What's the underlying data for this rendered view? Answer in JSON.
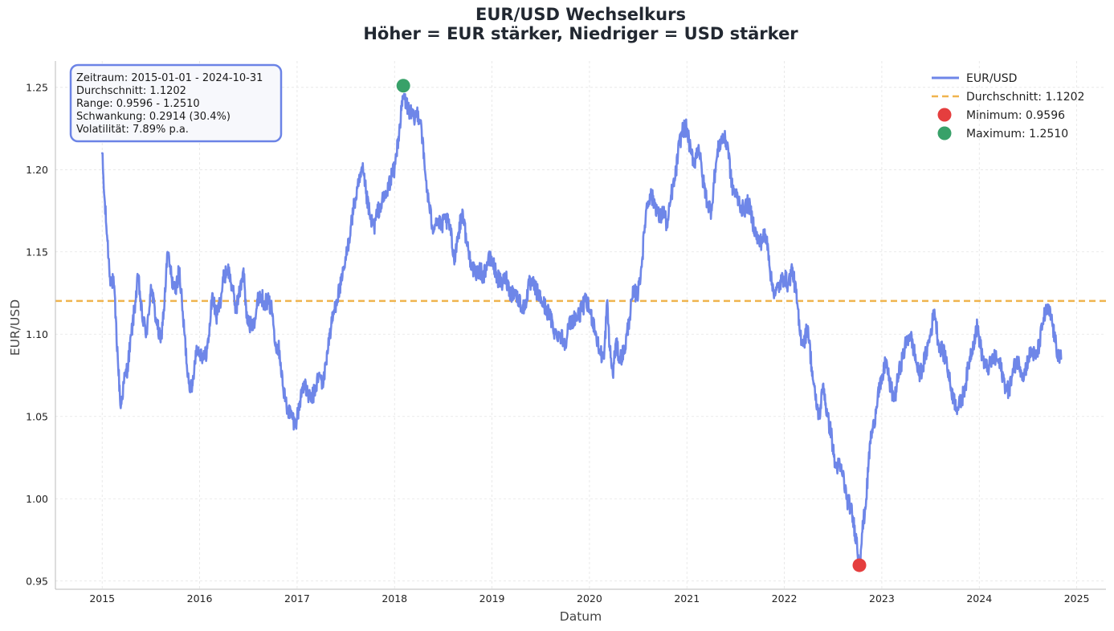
{
  "chart_data": {
    "type": "line",
    "title_line1": "EUR/USD Wechselkurs",
    "title_line2": "Höher = EUR stärker, Niedriger = USD stärker",
    "xlabel": "Datum",
    "ylabel": "EUR/USD",
    "xlim": [
      2014.52,
      2025.3
    ],
    "ylim": [
      0.945,
      1.266
    ],
    "x_ticks": [
      "2015",
      "2016",
      "2017",
      "2018",
      "2019",
      "2020",
      "2021",
      "2022",
      "2023",
      "2024",
      "2025"
    ],
    "y_ticks": [
      "0.95",
      "1.00",
      "1.05",
      "1.10",
      "1.15",
      "1.20",
      "1.25"
    ],
    "grid": true,
    "legend_position": "top-right",
    "series": [
      {
        "name": "EUR/USD",
        "color": "#6e86e8",
        "anchors": [
          [
            2015.0,
            1.21
          ],
          [
            2015.02,
            1.185
          ],
          [
            2015.05,
            1.16
          ],
          [
            2015.08,
            1.135
          ],
          [
            2015.12,
            1.13
          ],
          [
            2015.16,
            1.085
          ],
          [
            2015.19,
            1.055
          ],
          [
            2015.22,
            1.07
          ],
          [
            2015.26,
            1.08
          ],
          [
            2015.3,
            1.1
          ],
          [
            2015.34,
            1.12
          ],
          [
            2015.37,
            1.135
          ],
          [
            2015.41,
            1.11
          ],
          [
            2015.46,
            1.1
          ],
          [
            2015.5,
            1.13
          ],
          [
            2015.55,
            1.11
          ],
          [
            2015.6,
            1.095
          ],
          [
            2015.64,
            1.12
          ],
          [
            2015.67,
            1.15
          ],
          [
            2015.71,
            1.135
          ],
          [
            2015.75,
            1.125
          ],
          [
            2015.79,
            1.14
          ],
          [
            2015.83,
            1.11
          ],
          [
            2015.88,
            1.075
          ],
          [
            2015.92,
            1.065
          ],
          [
            2015.96,
            1.09
          ],
          [
            2016.0,
            1.09
          ],
          [
            2016.05,
            1.085
          ],
          [
            2016.09,
            1.095
          ],
          [
            2016.13,
            1.125
          ],
          [
            2016.17,
            1.11
          ],
          [
            2016.21,
            1.12
          ],
          [
            2016.25,
            1.135
          ],
          [
            2016.29,
            1.14
          ],
          [
            2016.33,
            1.13
          ],
          [
            2016.37,
            1.115
          ],
          [
            2016.41,
            1.125
          ],
          [
            2016.45,
            1.14
          ],
          [
            2016.48,
            1.11
          ],
          [
            2016.52,
            1.105
          ],
          [
            2016.57,
            1.11
          ],
          [
            2016.61,
            1.125
          ],
          [
            2016.66,
            1.12
          ],
          [
            2016.7,
            1.12
          ],
          [
            2016.74,
            1.115
          ],
          [
            2016.78,
            1.095
          ],
          [
            2016.82,
            1.09
          ],
          [
            2016.86,
            1.065
          ],
          [
            2016.9,
            1.055
          ],
          [
            2016.95,
            1.05
          ],
          [
            2016.98,
            1.045
          ],
          [
            2017.02,
            1.055
          ],
          [
            2017.06,
            1.07
          ],
          [
            2017.1,
            1.065
          ],
          [
            2017.14,
            1.06
          ],
          [
            2017.18,
            1.065
          ],
          [
            2017.22,
            1.075
          ],
          [
            2017.27,
            1.07
          ],
          [
            2017.31,
            1.09
          ],
          [
            2017.35,
            1.105
          ],
          [
            2017.4,
            1.12
          ],
          [
            2017.45,
            1.13
          ],
          [
            2017.5,
            1.145
          ],
          [
            2017.55,
            1.165
          ],
          [
            2017.59,
            1.18
          ],
          [
            2017.63,
            1.19
          ],
          [
            2017.67,
            1.2
          ],
          [
            2017.71,
            1.185
          ],
          [
            2017.75,
            1.17
          ],
          [
            2017.79,
            1.165
          ],
          [
            2017.83,
            1.175
          ],
          [
            2017.87,
            1.18
          ],
          [
            2017.92,
            1.185
          ],
          [
            2017.96,
            1.195
          ],
          [
            2018.0,
            1.2
          ],
          [
            2018.04,
            1.22
          ],
          [
            2018.09,
            1.245
          ],
          [
            2018.12,
            1.24
          ],
          [
            2018.16,
            1.235
          ],
          [
            2018.2,
            1.23
          ],
          [
            2018.23,
            1.235
          ],
          [
            2018.27,
            1.23
          ],
          [
            2018.31,
            1.2
          ],
          [
            2018.35,
            1.18
          ],
          [
            2018.39,
            1.165
          ],
          [
            2018.43,
            1.17
          ],
          [
            2018.48,
            1.165
          ],
          [
            2018.52,
            1.17
          ],
          [
            2018.57,
            1.165
          ],
          [
            2018.61,
            1.145
          ],
          [
            2018.65,
            1.16
          ],
          [
            2018.7,
            1.175
          ],
          [
            2018.74,
            1.155
          ],
          [
            2018.78,
            1.145
          ],
          [
            2018.83,
            1.135
          ],
          [
            2018.87,
            1.14
          ],
          [
            2018.91,
            1.135
          ],
          [
            2018.96,
            1.145
          ],
          [
            2019.0,
            1.145
          ],
          [
            2019.05,
            1.135
          ],
          [
            2019.1,
            1.13
          ],
          [
            2019.14,
            1.135
          ],
          [
            2019.19,
            1.125
          ],
          [
            2019.24,
            1.125
          ],
          [
            2019.28,
            1.12
          ],
          [
            2019.33,
            1.115
          ],
          [
            2019.38,
            1.13
          ],
          [
            2019.42,
            1.13
          ],
          [
            2019.47,
            1.125
          ],
          [
            2019.51,
            1.12
          ],
          [
            2019.56,
            1.115
          ],
          [
            2019.6,
            1.11
          ],
          [
            2019.65,
            1.1
          ],
          [
            2019.7,
            1.1
          ],
          [
            2019.75,
            1.095
          ],
          [
            2019.79,
            1.105
          ],
          [
            2019.84,
            1.11
          ],
          [
            2019.88,
            1.11
          ],
          [
            2019.92,
            1.115
          ],
          [
            2019.96,
            1.12
          ],
          [
            2020.0,
            1.115
          ],
          [
            2020.05,
            1.105
          ],
          [
            2020.1,
            1.09
          ],
          [
            2020.15,
            1.085
          ],
          [
            2020.18,
            1.12
          ],
          [
            2020.21,
            1.09
          ],
          [
            2020.24,
            1.075
          ],
          [
            2020.27,
            1.095
          ],
          [
            2020.31,
            1.085
          ],
          [
            2020.36,
            1.09
          ],
          [
            2020.41,
            1.11
          ],
          [
            2020.45,
            1.125
          ],
          [
            2020.5,
            1.125
          ],
          [
            2020.54,
            1.145
          ],
          [
            2020.58,
            1.175
          ],
          [
            2020.62,
            1.185
          ],
          [
            2020.67,
            1.18
          ],
          [
            2020.72,
            1.17
          ],
          [
            2020.76,
            1.175
          ],
          [
            2020.8,
            1.165
          ],
          [
            2020.84,
            1.185
          ],
          [
            2020.88,
            1.195
          ],
          [
            2020.92,
            1.215
          ],
          [
            2020.96,
            1.225
          ],
          [
            2021.0,
            1.225
          ],
          [
            2021.04,
            1.21
          ],
          [
            2021.08,
            1.205
          ],
          [
            2021.12,
            1.215
          ],
          [
            2021.16,
            1.195
          ],
          [
            2021.21,
            1.18
          ],
          [
            2021.25,
            1.175
          ],
          [
            2021.29,
            1.2
          ],
          [
            2021.33,
            1.215
          ],
          [
            2021.37,
            1.22
          ],
          [
            2021.42,
            1.215
          ],
          [
            2021.46,
            1.19
          ],
          [
            2021.5,
            1.185
          ],
          [
            2021.54,
            1.18
          ],
          [
            2021.58,
            1.175
          ],
          [
            2021.63,
            1.18
          ],
          [
            2021.67,
            1.17
          ],
          [
            2021.71,
            1.16
          ],
          [
            2021.75,
            1.155
          ],
          [
            2021.79,
            1.16
          ],
          [
            2021.83,
            1.155
          ],
          [
            2021.87,
            1.13
          ],
          [
            2021.91,
            1.125
          ],
          [
            2021.95,
            1.13
          ],
          [
            2022.0,
            1.135
          ],
          [
            2022.04,
            1.13
          ],
          [
            2022.08,
            1.14
          ],
          [
            2022.12,
            1.125
          ],
          [
            2022.16,
            1.1
          ],
          [
            2022.2,
            1.095
          ],
          [
            2022.24,
            1.105
          ],
          [
            2022.28,
            1.08
          ],
          [
            2022.32,
            1.06
          ],
          [
            2022.36,
            1.05
          ],
          [
            2022.4,
            1.07
          ],
          [
            2022.44,
            1.05
          ],
          [
            2022.48,
            1.04
          ],
          [
            2022.52,
            1.02
          ],
          [
            2022.56,
            1.02
          ],
          [
            2022.6,
            1.015
          ],
          [
            2022.64,
            1.0
          ],
          [
            2022.68,
            0.995
          ],
          [
            2022.71,
            0.985
          ],
          [
            2022.74,
            0.975
          ],
          [
            2022.77,
            0.96
          ],
          [
            2022.8,
            0.98
          ],
          [
            2022.84,
            1.0
          ],
          [
            2022.88,
            1.035
          ],
          [
            2022.92,
            1.045
          ],
          [
            2022.96,
            1.065
          ],
          [
            2023.0,
            1.07
          ],
          [
            2023.04,
            1.085
          ],
          [
            2023.08,
            1.07
          ],
          [
            2023.13,
            1.06
          ],
          [
            2023.17,
            1.075
          ],
          [
            2023.21,
            1.085
          ],
          [
            2023.25,
            1.095
          ],
          [
            2023.29,
            1.1
          ],
          [
            2023.33,
            1.09
          ],
          [
            2023.38,
            1.075
          ],
          [
            2023.42,
            1.08
          ],
          [
            2023.46,
            1.09
          ],
          [
            2023.5,
            1.1
          ],
          [
            2023.54,
            1.115
          ],
          [
            2023.58,
            1.095
          ],
          [
            2023.62,
            1.09
          ],
          [
            2023.66,
            1.085
          ],
          [
            2023.7,
            1.07
          ],
          [
            2023.74,
            1.06
          ],
          [
            2023.78,
            1.055
          ],
          [
            2023.82,
            1.06
          ],
          [
            2023.86,
            1.07
          ],
          [
            2023.9,
            1.085
          ],
          [
            2023.94,
            1.095
          ],
          [
            2023.98,
            1.105
          ],
          [
            2024.02,
            1.09
          ],
          [
            2024.06,
            1.08
          ],
          [
            2024.1,
            1.08
          ],
          [
            2024.14,
            1.085
          ],
          [
            2024.18,
            1.085
          ],
          [
            2024.22,
            1.08
          ],
          [
            2024.26,
            1.07
          ],
          [
            2024.3,
            1.065
          ],
          [
            2024.34,
            1.075
          ],
          [
            2024.38,
            1.085
          ],
          [
            2024.42,
            1.08
          ],
          [
            2024.46,
            1.075
          ],
          [
            2024.5,
            1.085
          ],
          [
            2024.54,
            1.09
          ],
          [
            2024.58,
            1.085
          ],
          [
            2024.62,
            1.095
          ],
          [
            2024.66,
            1.11
          ],
          [
            2024.7,
            1.115
          ],
          [
            2024.74,
            1.11
          ],
          [
            2024.78,
            1.095
          ],
          [
            2024.82,
            1.085
          ],
          [
            2024.84,
            1.085
          ]
        ]
      }
    ],
    "average": {
      "label": "Durchschnitt: 1.1202",
      "value": 1.1202,
      "color": "#f0b44e"
    },
    "minimum": {
      "label": "Minimum: 0.9596",
      "x": 2022.77,
      "value": 0.9596,
      "color": "#e53e3e"
    },
    "maximum": {
      "label": "Maximum: 1.2510",
      "x": 2018.09,
      "value": 1.251,
      "color": "#38a169"
    },
    "stats_box": [
      "Zeitraum: 2015-01-01 - 2024-10-31",
      "Durchschnitt: 1.1202",
      "Range: 0.9596 - 1.2510",
      "Schwankung: 0.2914 (30.4%)",
      "Volatilität: 7.89% p.a."
    ]
  }
}
